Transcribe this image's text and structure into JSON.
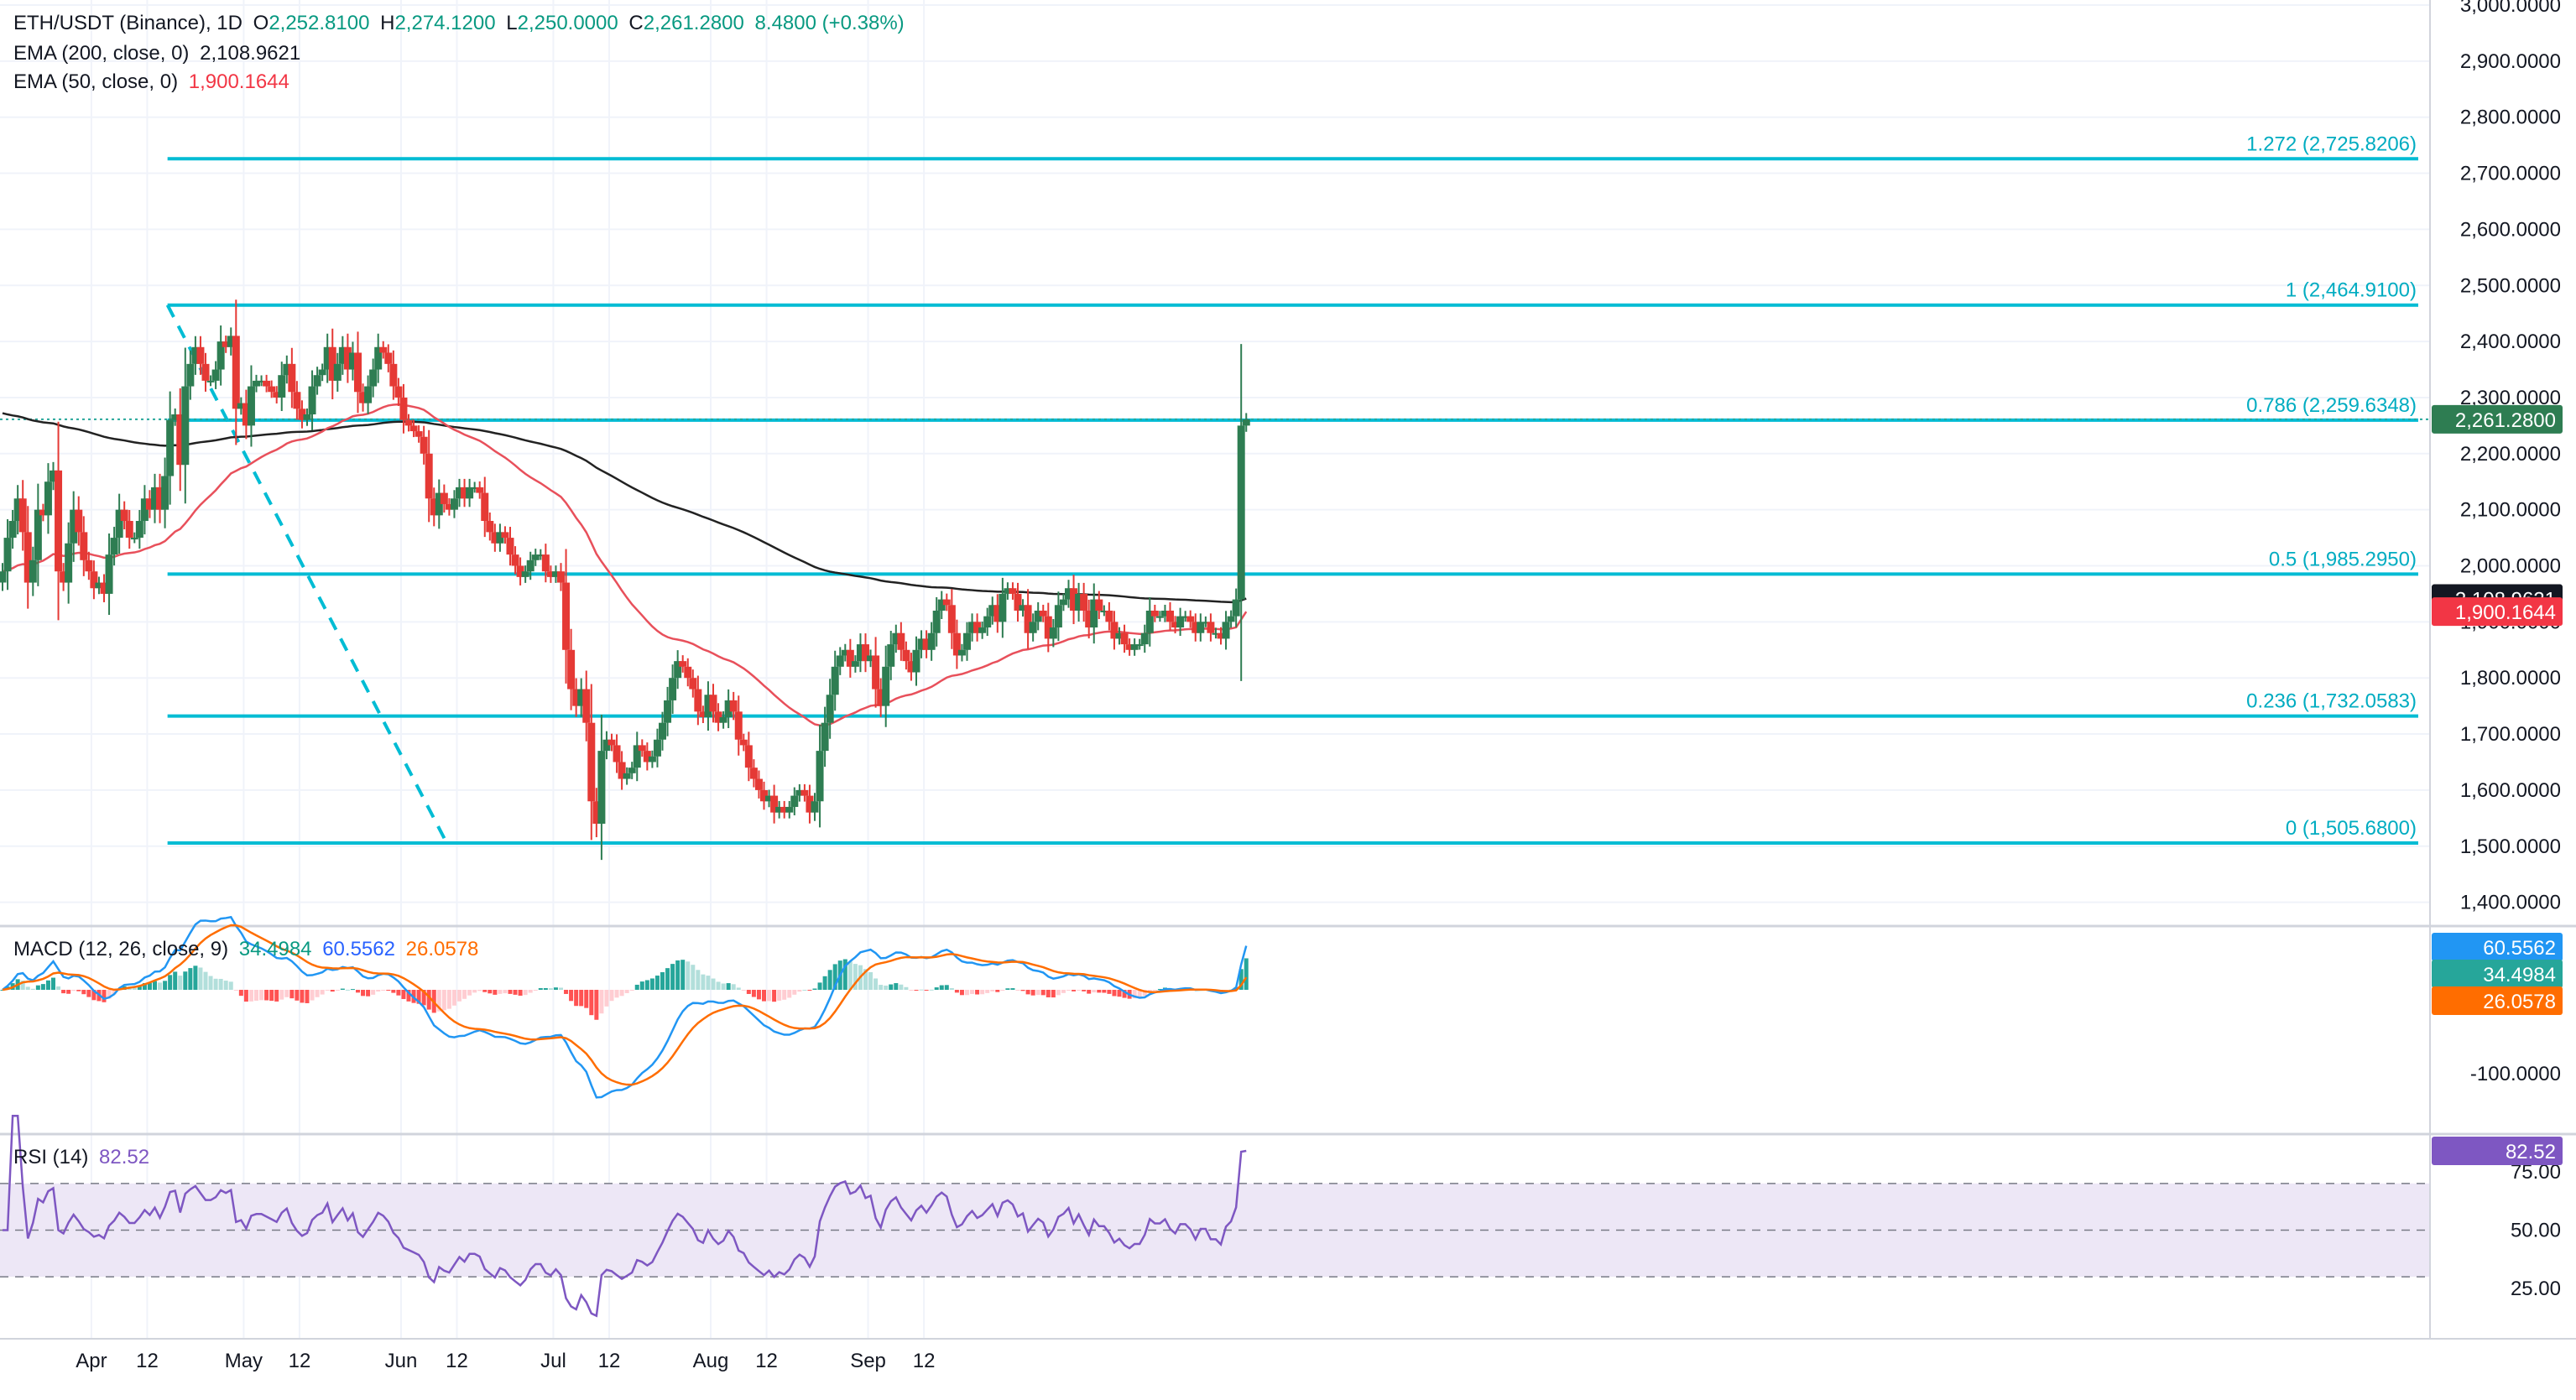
{
  "header": {
    "symbol": "ETH/USDT (Binance), 1D",
    "ohlc": {
      "o_label": "O",
      "o": "2,252.8100",
      "h_label": "H",
      "h": "2,274.1200",
      "l_label": "L",
      "l": "2,250.0000",
      "c_label": "C",
      "c": "2,261.2800",
      "change": "8.4800 (+0.38%)"
    },
    "ema200": {
      "label": "EMA (200, close, 0)",
      "value": "2,108.9621"
    },
    "ema50": {
      "label": "EMA (50, close, 0)",
      "value": "1,900.1644"
    },
    "macd": {
      "label": "MACD (12, 26, close, 9)",
      "hist": "34.4984",
      "macd": "60.5562",
      "signal": "26.0578"
    },
    "rsi": {
      "label": "RSI (14)",
      "value": "82.52"
    }
  },
  "colors": {
    "up": "#26a69a",
    "down": "#ef5350",
    "upCandle": "#2e7d52",
    "downCandle": "#e53935",
    "ema200": "#222222",
    "ema50": "#e8505b",
    "fib": "#00bcd4",
    "macd": "#2196f3",
    "signal": "#ff6d00",
    "rsi": "#7e57c2",
    "rsiBand": "#ede7f6"
  },
  "price_axis": {
    "ticks": [
      "3,000.0000",
      "2,900.0000",
      "2,800.0000",
      "2,700.0000",
      "2,600.0000",
      "2,500.0000",
      "2,400.0000",
      "2,300.0000",
      "2,200.0000",
      "2,100.0000",
      "2,000.0000",
      "1,900.0000",
      "1,800.0000",
      "1,700.0000",
      "1,600.0000",
      "1,500.0000",
      "1,400.0000"
    ],
    "last_price": "2,261.2800",
    "ema200_badge": "2,108.9621",
    "ema50_badge": "1,900.1644"
  },
  "macd_axis": {
    "ticks": [
      "-100.0000"
    ],
    "badges": [
      "60.5562",
      "34.4984",
      "26.0578"
    ]
  },
  "rsi_axis": {
    "ticks": [
      "75.00",
      "50.00",
      "25.00"
    ],
    "badge": "82.52"
  },
  "time_axis": [
    "Apr",
    "12",
    "May",
    "12",
    "Jun",
    "12",
    "Jul",
    "12",
    "Aug",
    "12",
    "Sep",
    "12"
  ],
  "fib_labels": [
    "1.272 (2,725.8206)",
    "1 (2,464.9100)",
    "0.786 (2,259.6348)",
    "0.5 (1,985.2950)",
    "0.236 (1,732.0583)",
    "0 (1,505.6800)"
  ],
  "chart_data": {
    "type": "candlestick",
    "x_start": "2023-03-14",
    "ylim": [
      1370,
      3000
    ],
    "fib": [
      {
        "label": "1.272 (2,725.8206)",
        "price": 2725.8206
      },
      {
        "label": "1 (2,464.9100)",
        "price": 2464.91
      },
      {
        "label": "0.786 (2,259.6348)",
        "price": 2259.6348
      },
      {
        "label": "0.5 (1,985.2950)",
        "price": 1985.295
      },
      {
        "label": "0.236 (1,732.0583)",
        "price": 1732.0583
      },
      {
        "label": "0 (1,505.6800)",
        "price": 1505.68
      }
    ],
    "fib_start": "2023-04-16",
    "trend_line": {
      "from": [
        "2023-04-16",
        2464.91
      ],
      "to": [
        "2023-06-10",
        1505.68
      ]
    },
    "close": [
      1990,
      2050,
      2080,
      2120,
      2060,
      1970,
      2010,
      2100,
      2090,
      2150,
      2170,
      1990,
      1970,
      2040,
      2100,
      2060,
      2010,
      1990,
      1960,
      1970,
      1950,
      2020,
      2050,
      2100,
      2080,
      2050,
      2050,
      2080,
      2120,
      2100,
      2140,
      2100,
      2160,
      2260,
      2270,
      2180,
      2320,
      2360,
      2390,
      2360,
      2330,
      2330,
      2350,
      2400,
      2390,
      2410,
      2280,
      2290,
      2250,
      2320,
      2330,
      2330,
      2320,
      2310,
      2300,
      2340,
      2360,
      2310,
      2280,
      2260,
      2270,
      2320,
      2340,
      2350,
      2390,
      2330,
      2360,
      2390,
      2350,
      2380,
      2310,
      2290,
      2320,
      2350,
      2390,
      2380,
      2360,
      2320,
      2300,
      2260,
      2250,
      2240,
      2230,
      2200,
      2120,
      2090,
      2130,
      2110,
      2100,
      2120,
      2140,
      2120,
      2140,
      2140,
      2130,
      2080,
      2060,
      2040,
      2060,
      2050,
      2020,
      2000,
      1980,
      1990,
      2010,
      2020,
      2020,
      1990,
      1980,
      1990,
      1970,
      1850,
      1780,
      1750,
      1780,
      1720,
      1580,
      1540,
      1670,
      1690,
      1680,
      1650,
      1620,
      1630,
      1640,
      1680,
      1670,
      1650,
      1660,
      1690,
      1720,
      1760,
      1800,
      1830,
      1820,
      1800,
      1780,
      1740,
      1730,
      1770,
      1740,
      1720,
      1730,
      1760,
      1740,
      1690,
      1680,
      1640,
      1620,
      1600,
      1580,
      1590,
      1560,
      1570,
      1560,
      1570,
      1590,
      1600,
      1590,
      1560,
      1580,
      1670,
      1720,
      1770,
      1820,
      1840,
      1850,
      1820,
      1830,
      1860,
      1830,
      1840,
      1780,
      1750,
      1820,
      1860,
      1880,
      1850,
      1830,
      1810,
      1850,
      1870,
      1850,
      1880,
      1920,
      1940,
      1930,
      1880,
      1840,
      1850,
      1880,
      1900,
      1880,
      1890,
      1910,
      1930,
      1900,
      1950,
      1960,
      1950,
      1920,
      1930,
      1880,
      1900,
      1920,
      1910,
      1870,
      1890,
      1930,
      1940,
      1960,
      1920,
      1950,
      1920,
      1890,
      1940,
      1920,
      1920,
      1900,
      1870,
      1880,
      1860,
      1850,
      1860,
      1860,
      1880,
      1920,
      1910,
      1910,
      1920,
      1900,
      1890,
      1910,
      1910,
      1900,
      1880,
      1900,
      1900,
      1880,
      1880,
      1870,
      1900,
      1910,
      1940,
      2250,
      2261.28
    ]
  }
}
